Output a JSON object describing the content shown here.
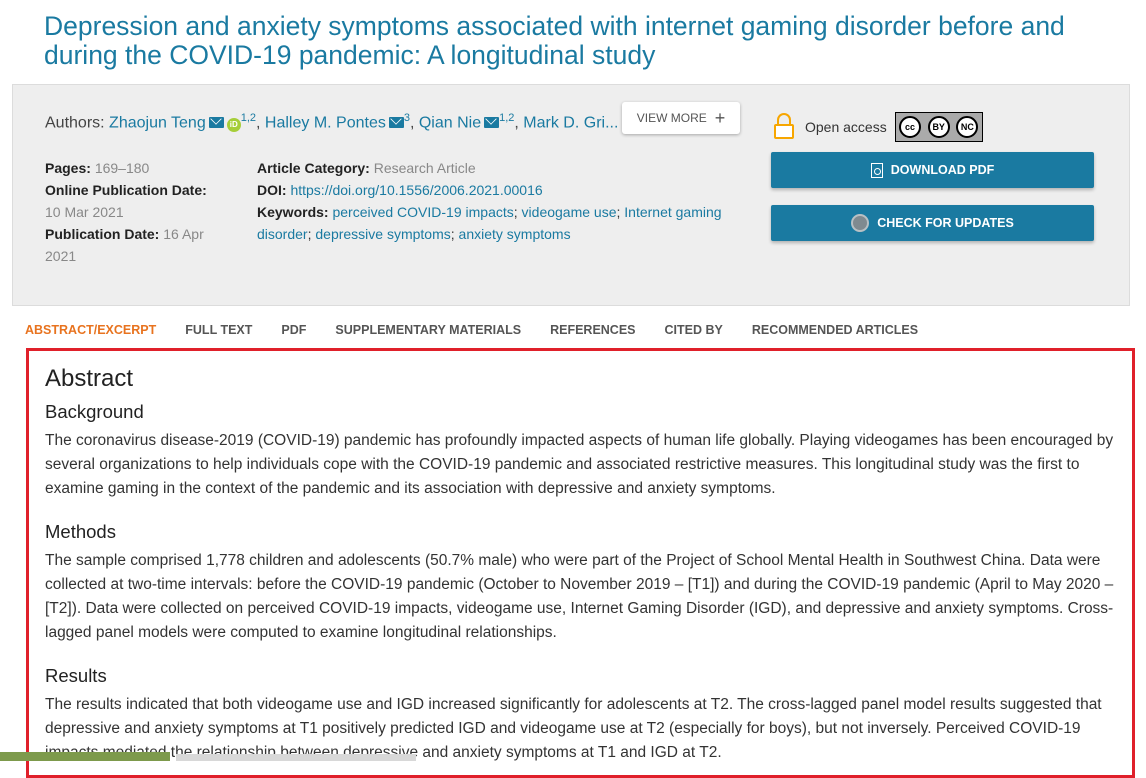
{
  "article": {
    "title": "Depression and anxiety symptoms associated with internet gaming disorder before and during the COVID-19 pandemic: A longitudinal study"
  },
  "authors": {
    "label": "Authors:",
    "list": [
      {
        "name": "Zhaojun Teng",
        "sup": "1,2"
      },
      {
        "name": "Halley M. Pontes",
        "sup": "3"
      },
      {
        "name": "Qian Nie",
        "sup": "1,2"
      },
      {
        "name": "Mark D. Gri..."
      }
    ],
    "view_more": "VIEW MORE"
  },
  "meta": {
    "pages_label": "Pages:",
    "pages": "169–180",
    "online_pub_label": "Online Publication Date:",
    "online_pub": "10 Mar 2021",
    "pub_date_label": "Publication Date:",
    "pub_date": "16 Apr 2021",
    "category_label": "Article Category:",
    "category": "Research Article",
    "doi_label": "DOI:",
    "doi": "https://doi.org/10.1556/2006.2021.00016",
    "keywords_label": "Keywords:",
    "keywords": [
      "perceived COVID-19 impacts",
      "videogame use",
      "Internet gaming disorder",
      "depressive symptoms",
      "anxiety symptoms"
    ]
  },
  "access": {
    "label": "Open access",
    "license": [
      "cc",
      "BY",
      "NC"
    ]
  },
  "buttons": {
    "download_pdf": "DOWNLOAD PDF",
    "check_updates": "CHECK FOR UPDATES"
  },
  "tabs": [
    "ABSTRACT/EXCERPT",
    "FULL TEXT",
    "PDF",
    "SUPPLEMENTARY MATERIALS",
    "REFERENCES",
    "CITED BY",
    "RECOMMENDED ARTICLES"
  ],
  "abstract": {
    "heading": "Abstract",
    "background_heading": "Background",
    "background": "The coronavirus disease-2019 (COVID-19) pandemic has profoundly impacted aspects of human life globally. Playing videogames has been encouraged by several organizations to help individuals cope with the COVID-19 pandemic and associated restrictive measures. This longitudinal study was the first to examine gaming in the context of the pandemic and its association with depressive and anxiety symptoms.",
    "methods_heading": "Methods",
    "methods": "The sample comprised 1,778 children and adolescents (50.7% male) who were part of the Project of School Mental Health in Southwest China. Data were collected at two-time intervals: before the COVID-19 pandemic (October to November 2019 – [T1]) and during the COVID-19 pandemic (April to May 2020 – [T2]). Data were collected on perceived COVID-19 impacts, videogame use, Internet Gaming Disorder (IGD), and depressive and anxiety symptoms. Cross-lagged panel models were computed to examine longitudinal relationships.",
    "results_heading": "Results",
    "results": "The results indicated that both videogame use and IGD increased significantly for adolescents at T2. The cross-lagged panel model results suggested that depressive and anxiety symptoms at T1 positively predicted IGD and videogame use at T2 (especially for boys), but not inversely. Perceived COVID-19 impacts mediated the relationship between depressive and anxiety symptoms at T1 and IGD at T2."
  },
  "colors": {
    "link": "#1a7aa1",
    "active_tab": "#e8731f",
    "highlight_border": "#e0202a",
    "lock": "#f7a600"
  }
}
